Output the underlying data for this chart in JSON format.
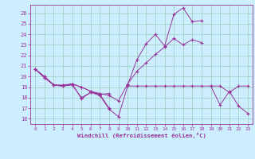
{
  "xlabel": "Windchill (Refroidissement éolien,°C)",
  "background_color": "#cceeff",
  "grid_color": "#99ccbb",
  "line_color": "#993399",
  "xlim": [
    -0.5,
    23.5
  ],
  "ylim": [
    15.5,
    26.8
  ],
  "yticks": [
    16,
    17,
    18,
    19,
    20,
    21,
    22,
    23,
    24,
    25,
    26
  ],
  "xticks": [
    0,
    1,
    2,
    3,
    4,
    5,
    6,
    7,
    8,
    9,
    10,
    11,
    12,
    13,
    14,
    15,
    16,
    17,
    18,
    19,
    20,
    21,
    22,
    23
  ],
  "lines": [
    [
      0,
      1,
      2,
      3,
      4,
      5,
      6,
      7,
      8,
      9,
      10,
      11,
      12,
      13,
      14,
      15,
      16,
      17,
      18,
      19,
      20,
      21,
      22,
      23
    ],
    [
      20.7,
      19.9,
      19.2,
      19.1,
      19.3,
      17.9,
      18.5,
      18.2,
      16.9,
      16.2,
      19.1,
      19.1,
      19.1,
      19.1,
      19.1,
      19.1,
      19.1,
      19.1,
      19.1,
      19.1,
      19.1,
      18.5,
      19.1,
      19.1
    ],
    [
      0,
      1,
      2,
      3,
      4,
      5,
      6,
      7,
      8,
      null,
      null,
      null,
      null,
      null,
      null,
      null,
      null,
      null,
      null,
      19,
      20,
      21,
      22,
      23
    ],
    [
      20.7,
      20.0,
      19.2,
      19.1,
      19.2,
      18.0,
      18.5,
      18.3,
      17.0,
      null,
      null,
      null,
      null,
      null,
      null,
      null,
      null,
      null,
      null,
      19.1,
      17.3,
      18.6,
      17.2,
      16.5
    ],
    [
      0,
      1,
      2,
      3,
      4,
      5,
      6,
      7,
      8,
      9,
      10,
      11,
      12,
      13,
      14,
      15,
      16,
      17,
      18,
      null,
      null,
      null,
      null,
      null
    ],
    [
      20.7,
      20.0,
      19.2,
      19.1,
      19.3,
      19.0,
      18.6,
      18.4,
      18.2,
      17.7,
      19.3,
      20.5,
      21.3,
      22.1,
      22.8,
      23.6,
      23.0,
      23.5,
      23.2,
      null,
      null,
      null,
      null,
      null
    ],
    [
      0,
      1,
      2,
      3,
      4,
      5,
      6,
      7,
      8,
      9,
      10,
      11,
      12,
      13,
      14,
      15,
      16,
      17,
      18,
      null,
      null,
      null,
      null,
      null
    ],
    [
      20.7,
      19.9,
      19.2,
      19.2,
      19.3,
      19.0,
      18.6,
      18.3,
      18.4,
      null,
      19.2,
      21.6,
      23.1,
      24.0,
      22.9,
      25.9,
      26.5,
      25.2,
      25.3,
      null,
      null,
      null,
      null,
      null
    ]
  ]
}
